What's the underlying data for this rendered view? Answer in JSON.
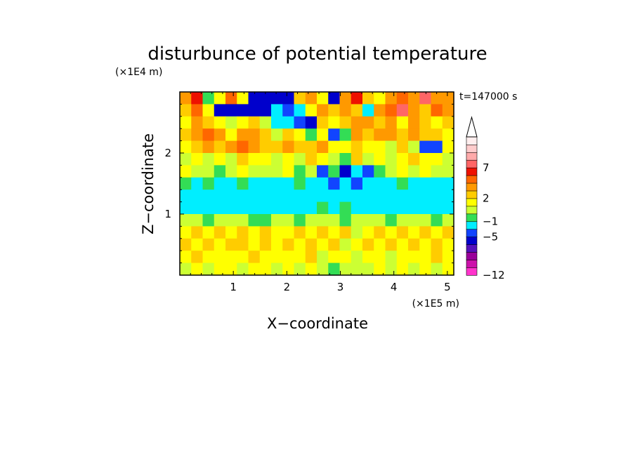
{
  "chart_data": {
    "type": "heatmap",
    "title": "disturbunce of potential temperature",
    "xlabel": "X−coordinate",
    "ylabel": "Z−coordinate",
    "x_unit": "(×1E5 m)",
    "y_unit": "(×1E4 m)",
    "time_label": "t=147000 s",
    "xlim": [
      0,
      5.12
    ],
    "ylim": [
      0,
      3.0
    ],
    "x_ticks": [
      {
        "value": 1,
        "label": "1"
      },
      {
        "value": 2,
        "label": "2"
      },
      {
        "value": 3,
        "label": "3"
      },
      {
        "value": 4,
        "label": "4"
      },
      {
        "value": 5,
        "label": "5"
      }
    ],
    "y_ticks": [
      {
        "value": 1,
        "label": "1"
      },
      {
        "value": 2,
        "label": "2"
      }
    ],
    "colorbar": {
      "extend": "max",
      "colors": [
        "#ff33cc",
        "#cc11aa",
        "#990099",
        "#5511bb",
        "#0000cc",
        "#1144ff",
        "#00eeff",
        "#33dd55",
        "#ccff33",
        "#ffff00",
        "#ffcc00",
        "#ff9900",
        "#ff6600",
        "#ee1100",
        "#ff6666",
        "#ffaaaa",
        "#ffcccc",
        "#ffeeee"
      ],
      "boundaries": [
        -12,
        -11,
        -10,
        -9,
        -7,
        -5,
        -3,
        -1,
        0,
        1,
        2,
        3,
        5,
        6,
        7,
        8,
        9,
        10,
        11
      ],
      "labels": [
        {
          "value": -12,
          "label": "−12"
        },
        {
          "value": -5,
          "label": "−5"
        },
        {
          "value": -1,
          "label": "−1"
        },
        {
          "value": 2,
          "label": "2"
        },
        {
          "value": 7,
          "label": "7"
        }
      ]
    },
    "field_rows_top_to_bottom": [
      [
        3,
        6,
        -1,
        1,
        5,
        1,
        -6,
        -6,
        -6,
        -6,
        2,
        3,
        1,
        -6,
        3,
        6,
        2,
        1,
        4,
        5,
        3,
        7,
        3,
        4
      ],
      [
        2,
        5,
        1,
        -6,
        -6,
        -7,
        -7,
        -6,
        -3,
        -5,
        -3,
        1,
        3,
        2,
        4,
        2,
        -2,
        3,
        5,
        7,
        4,
        2,
        5,
        3
      ],
      [
        1,
        3,
        2,
        1,
        0,
        1,
        2,
        0,
        -2,
        -3,
        -5,
        -6,
        2,
        1,
        2,
        3,
        4,
        2,
        3,
        1,
        3,
        2,
        1,
        2
      ],
      [
        2,
        4,
        5,
        3,
        1,
        3,
        3,
        2,
        0,
        2,
        1,
        -1,
        1,
        -5,
        -1,
        3,
        2,
        4,
        3,
        2,
        3,
        2,
        2,
        1
      ],
      [
        1,
        2,
        3,
        2,
        3,
        5,
        4,
        2,
        2,
        3,
        2,
        2,
        3,
        1,
        1,
        2,
        1,
        1,
        0,
        2,
        0,
        -5,
        -5,
        1
      ],
      [
        0,
        1,
        0,
        1,
        0,
        2,
        1,
        1,
        0,
        1,
        0,
        2,
        1,
        0,
        -1,
        2,
        0,
        1,
        0,
        1,
        2,
        1,
        1,
        0
      ],
      [
        1,
        0,
        0,
        -1,
        0,
        1,
        0,
        0,
        0,
        1,
        -1,
        0,
        -5,
        -1,
        -6,
        -2,
        -5,
        -1,
        0,
        1,
        0,
        1,
        0,
        0
      ],
      [
        -1,
        -2,
        -1,
        -2,
        -2,
        -1,
        -2,
        -2,
        -2,
        -2,
        -1,
        -2,
        -3,
        -5,
        -2,
        -5,
        -2,
        -2,
        -2,
        -1,
        -2,
        -2,
        -2,
        -2
      ],
      [
        -2,
        -2,
        -2,
        -2,
        -2,
        -2,
        -2,
        -2,
        -2,
        -2,
        -2,
        -2,
        -2,
        -2,
        -2,
        -2,
        -2,
        -2,
        -2,
        -2,
        -2,
        -2,
        -2,
        -2
      ],
      [
        -2,
        -2,
        -2,
        -2,
        -2,
        -2,
        -2,
        -2,
        -2,
        -2,
        -2,
        -2,
        -1,
        -2,
        -1,
        -2,
        -2,
        -2,
        -2,
        -2,
        -2,
        -2,
        -2,
        -2
      ],
      [
        0,
        0,
        -1,
        0,
        0,
        0,
        -1,
        -1,
        0,
        0,
        -1,
        0,
        0,
        0,
        -1,
        0,
        0,
        0,
        -1,
        0,
        0,
        0,
        -1,
        0
      ],
      [
        1,
        2,
        1,
        2,
        1,
        2,
        1,
        2,
        1,
        1,
        2,
        1,
        2,
        1,
        2,
        0,
        1,
        2,
        1,
        2,
        1,
        2,
        1,
        2
      ],
      [
        2,
        1,
        2,
        1,
        2,
        2,
        1,
        2,
        1,
        2,
        1,
        2,
        1,
        2,
        0,
        1,
        2,
        1,
        2,
        1,
        2,
        1,
        2,
        1
      ],
      [
        1,
        2,
        1,
        1,
        1,
        1,
        2,
        1,
        1,
        1,
        1,
        2,
        0,
        1,
        1,
        0,
        1,
        1,
        0,
        1,
        1,
        1,
        2,
        1
      ],
      [
        0,
        1,
        0,
        1,
        1,
        0,
        1,
        1,
        0,
        1,
        0,
        1,
        0,
        -1,
        0,
        0,
        0,
        1,
        0,
        1,
        0,
        1,
        0,
        1
      ]
    ]
  }
}
